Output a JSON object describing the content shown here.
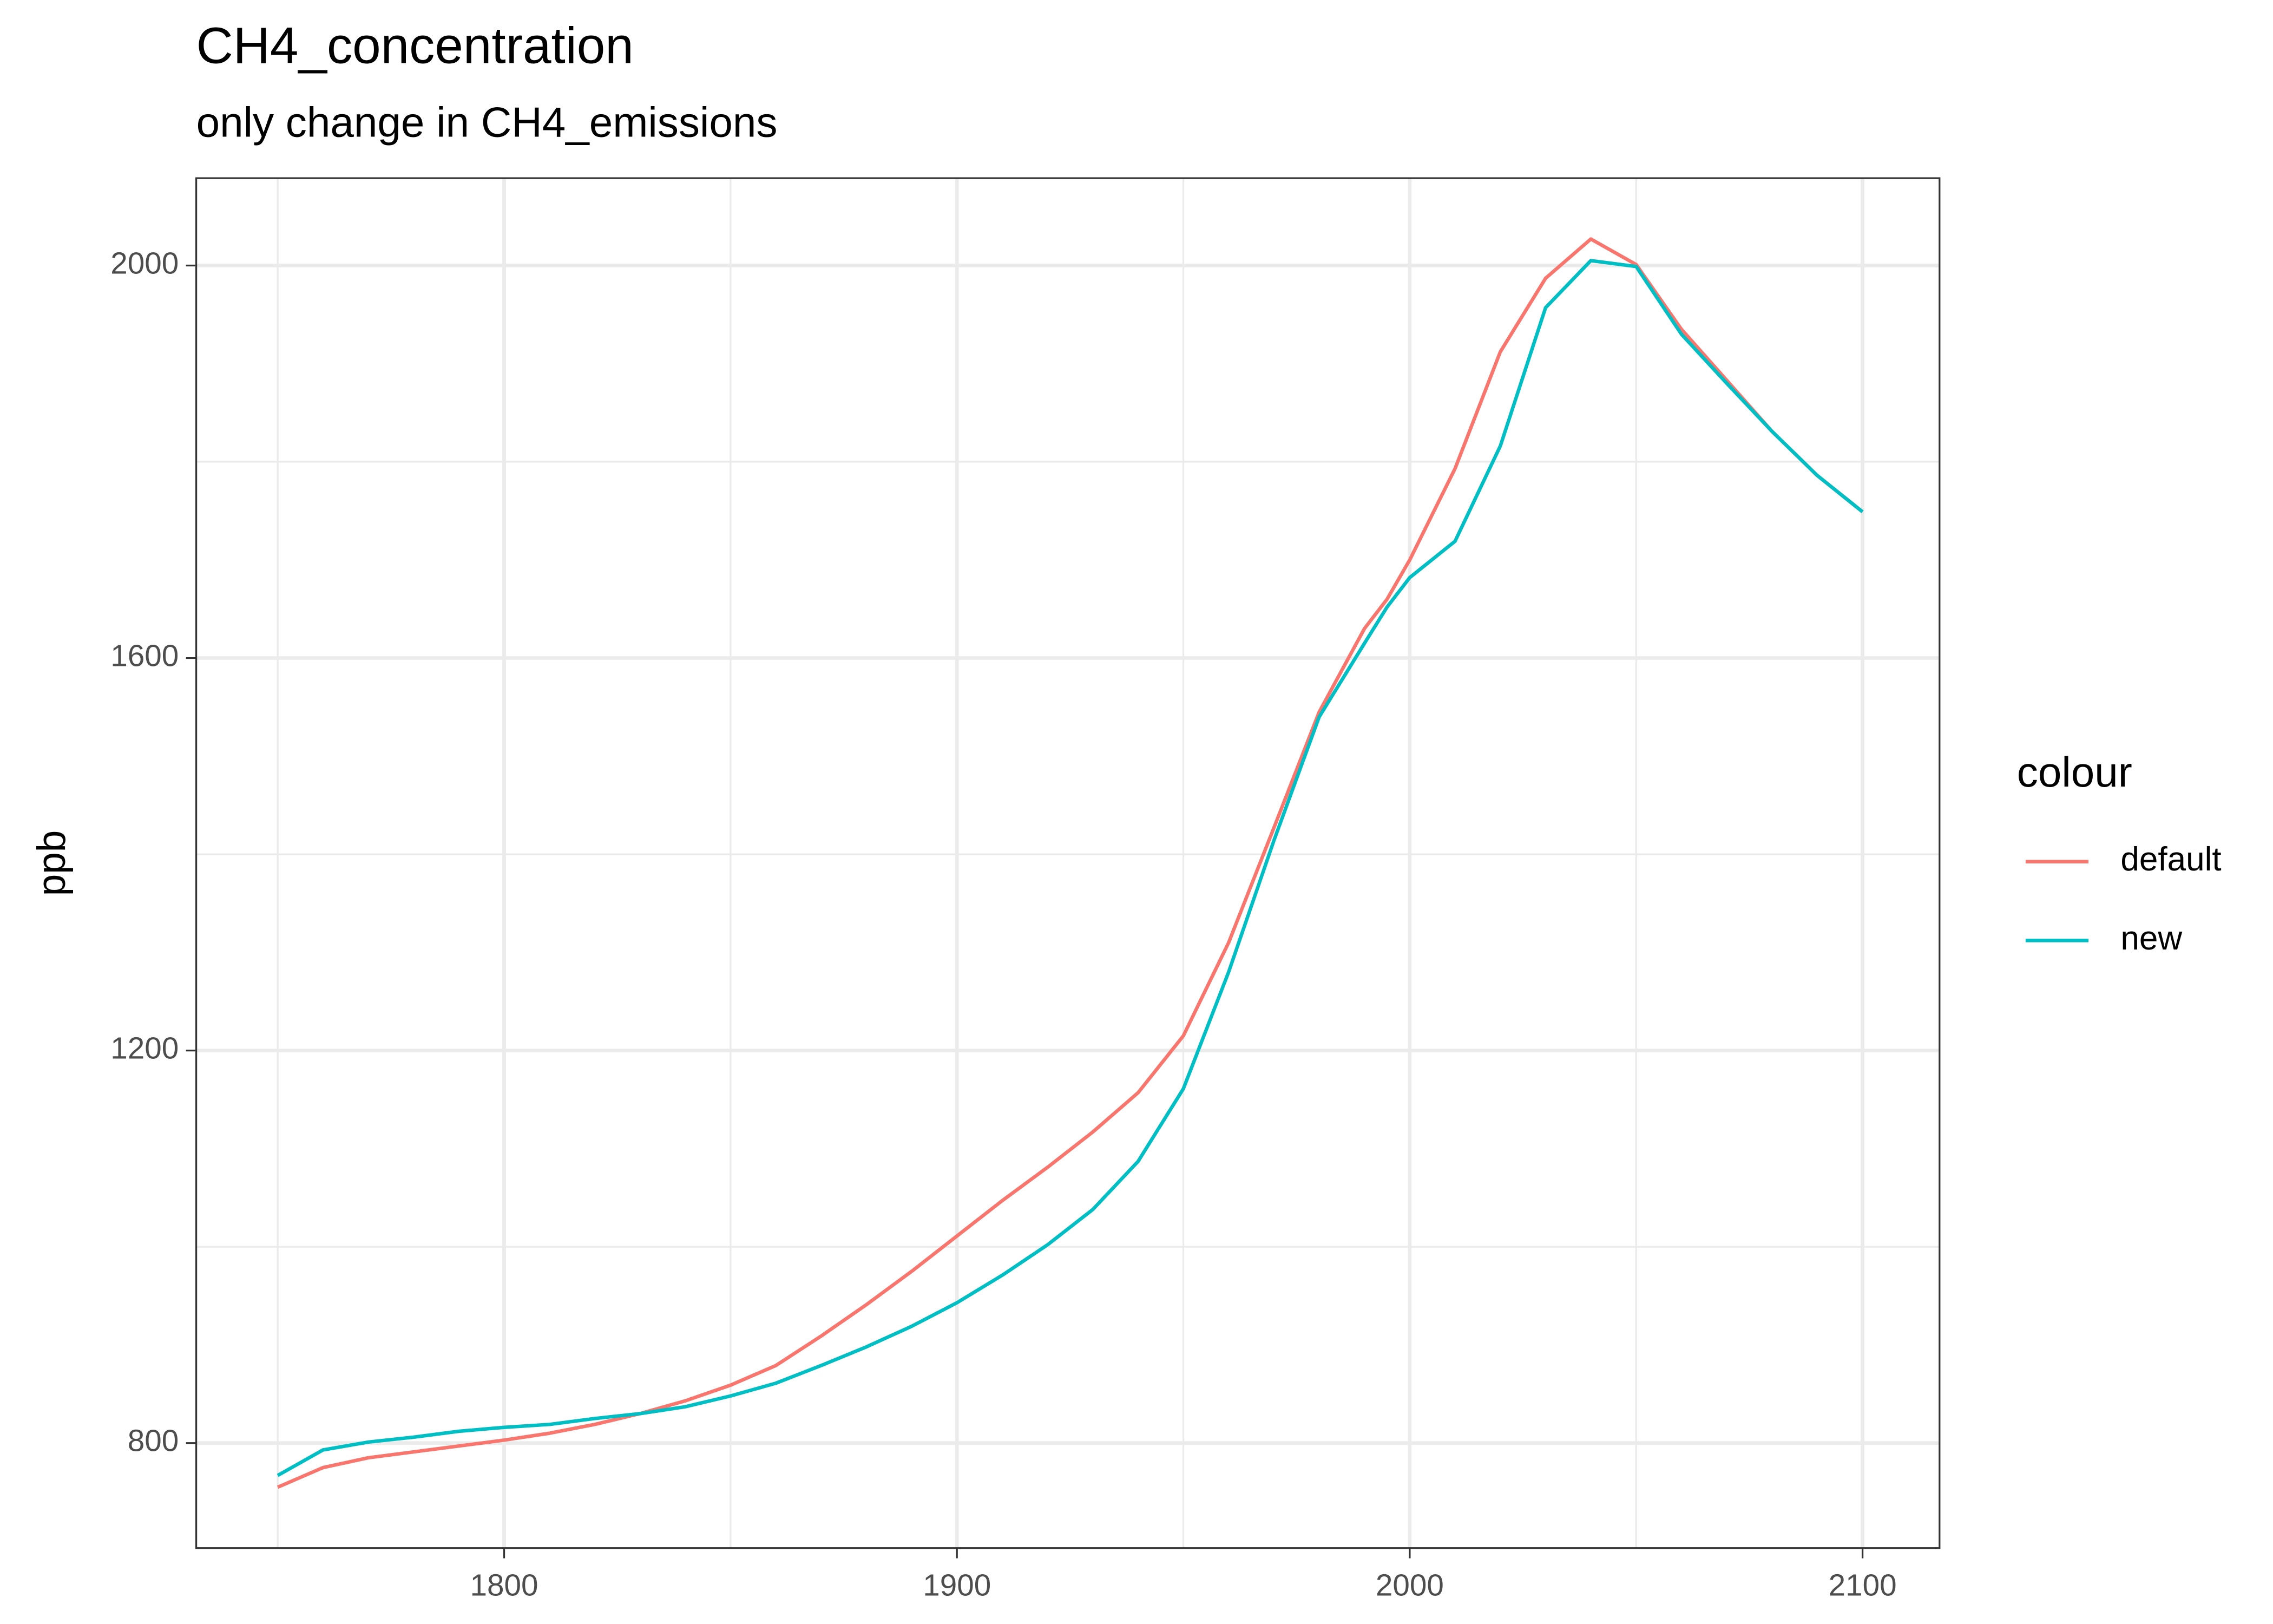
{
  "chart_data": {
    "type": "line",
    "title": "CH4_concentration",
    "subtitle": "only change in CH4_emissions",
    "y_label": "ppb",
    "legend_title": "colour",
    "legend_position": "right",
    "grid": true,
    "x": [
      1750,
      1760,
      1770,
      1780,
      1790,
      1800,
      1810,
      1820,
      1830,
      1840,
      1850,
      1860,
      1870,
      1880,
      1890,
      1900,
      1910,
      1920,
      1930,
      1940,
      1950,
      1960,
      1970,
      1980,
      1990,
      1995,
      2000,
      2010,
      2020,
      2030,
      2040,
      2050,
      2060,
      2070,
      2080,
      2090,
      2100
    ],
    "series": [
      {
        "name": "default",
        "color": "#F8766D",
        "values": [
          755,
          775,
          785,
          791,
          797,
          803,
          810,
          819,
          830,
          843,
          859,
          879,
          909,
          941,
          975,
          1011,
          1047,
          1081,
          1117,
          1157,
          1215,
          1310,
          1427,
          1545,
          1630,
          1660,
          1700,
          1793,
          1912,
          1987,
          2027,
          2001,
          1935,
          1883,
          1831,
          1786,
          1749
        ]
      },
      {
        "name": "new",
        "color": "#00BFC4",
        "values": [
          767,
          793,
          801,
          806,
          812,
          816,
          819,
          825,
          830,
          837,
          848,
          861,
          879,
          898,
          919,
          943,
          971,
          1002,
          1038,
          1087,
          1161,
          1280,
          1414,
          1540,
          1615,
          1652,
          1682,
          1719,
          1816,
          1957,
          2005,
          1999,
          1930,
          1880,
          1831,
          1786,
          1749
        ]
      }
    ],
    "xlim": [
      1732,
      2117
    ],
    "ylim": [
      693,
      2089
    ],
    "xticks": [
      1800,
      1900,
      2000,
      2100
    ],
    "yticks": [
      800,
      1200,
      1600,
      2000
    ],
    "xminor": [
      1750,
      1850,
      1950,
      2050
    ],
    "yminor": [
      1000,
      1400,
      1800
    ]
  }
}
